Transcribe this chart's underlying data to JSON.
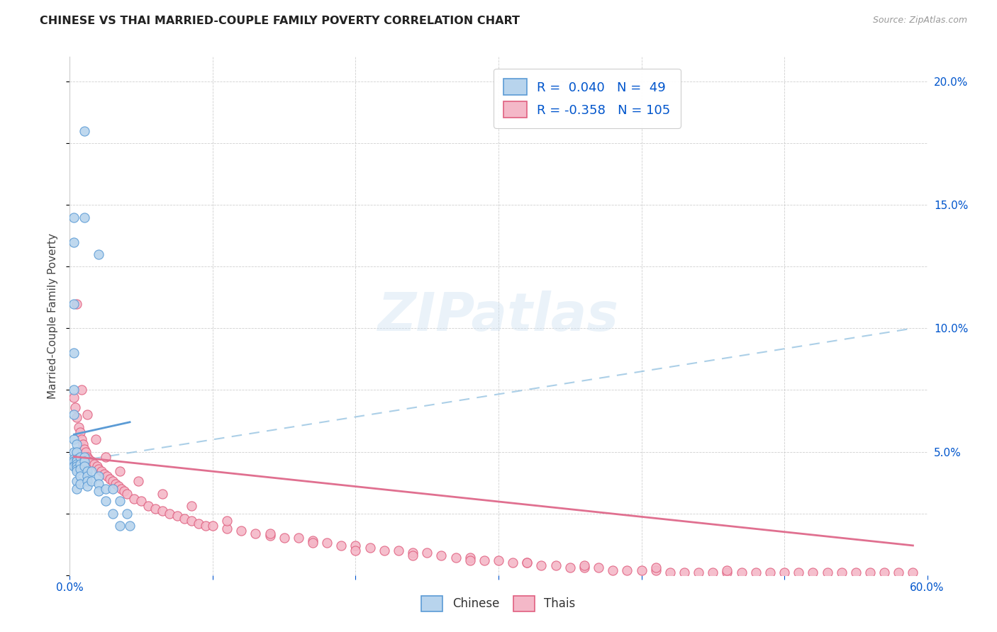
{
  "title": "CHINESE VS THAI MARRIED-COUPLE FAMILY POVERTY CORRELATION CHART",
  "source": "Source: ZipAtlas.com",
  "ylabel": "Married-Couple Family Poverty",
  "xlim": [
    0.0,
    0.6
  ],
  "ylim": [
    0.0,
    0.21
  ],
  "chinese_R": 0.04,
  "chinese_N": 49,
  "thai_R": -0.358,
  "thai_N": 105,
  "color_chinese_fill": "#b8d4ed",
  "color_chinese_edge": "#5b9bd5",
  "color_thai_fill": "#f4b8c8",
  "color_thai_edge": "#e06080",
  "color_chinese_trendline": "#5b9bd5",
  "color_thai_trendline": "#e07090",
  "color_dashed": "#90c0e0",
  "watermark": "ZIPatlas",
  "background_color": "#ffffff",
  "grid_color": "#bbbbbb",
  "title_color": "#222222",
  "axis_label_color": "#0055cc",
  "chinese_scatter_x": [
    0.01,
    0.01,
    0.02,
    0.003,
    0.003,
    0.003,
    0.003,
    0.003,
    0.003,
    0.003,
    0.003,
    0.003,
    0.003,
    0.003,
    0.005,
    0.005,
    0.005,
    0.005,
    0.005,
    0.005,
    0.005,
    0.005,
    0.005,
    0.005,
    0.007,
    0.007,
    0.007,
    0.007,
    0.007,
    0.01,
    0.01,
    0.01,
    0.012,
    0.012,
    0.012,
    0.012,
    0.015,
    0.015,
    0.02,
    0.02,
    0.02,
    0.025,
    0.025,
    0.03,
    0.03,
    0.035,
    0.035,
    0.04,
    0.042
  ],
  "chinese_scatter_y": [
    0.18,
    0.145,
    0.13,
    0.145,
    0.135,
    0.11,
    0.09,
    0.075,
    0.065,
    0.055,
    0.05,
    0.047,
    0.046,
    0.044,
    0.053,
    0.05,
    0.047,
    0.046,
    0.045,
    0.044,
    0.043,
    0.042,
    0.038,
    0.035,
    0.048,
    0.045,
    0.043,
    0.04,
    0.037,
    0.048,
    0.046,
    0.044,
    0.042,
    0.04,
    0.038,
    0.036,
    0.042,
    0.038,
    0.04,
    0.037,
    0.034,
    0.035,
    0.03,
    0.035,
    0.025,
    0.03,
    0.02,
    0.025,
    0.02
  ],
  "thai_scatter_x": [
    0.003,
    0.004,
    0.005,
    0.006,
    0.007,
    0.008,
    0.009,
    0.01,
    0.011,
    0.012,
    0.013,
    0.015,
    0.017,
    0.019,
    0.02,
    0.022,
    0.024,
    0.026,
    0.028,
    0.03,
    0.032,
    0.034,
    0.036,
    0.038,
    0.04,
    0.045,
    0.05,
    0.055,
    0.06,
    0.065,
    0.07,
    0.075,
    0.08,
    0.085,
    0.09,
    0.095,
    0.1,
    0.11,
    0.12,
    0.13,
    0.14,
    0.15,
    0.16,
    0.17,
    0.18,
    0.19,
    0.2,
    0.21,
    0.22,
    0.23,
    0.24,
    0.25,
    0.26,
    0.27,
    0.28,
    0.29,
    0.3,
    0.31,
    0.32,
    0.33,
    0.34,
    0.35,
    0.36,
    0.37,
    0.38,
    0.39,
    0.4,
    0.41,
    0.42,
    0.43,
    0.44,
    0.45,
    0.46,
    0.47,
    0.48,
    0.49,
    0.5,
    0.51,
    0.52,
    0.53,
    0.54,
    0.55,
    0.56,
    0.57,
    0.58,
    0.59,
    0.005,
    0.008,
    0.012,
    0.018,
    0.025,
    0.035,
    0.048,
    0.065,
    0.085,
    0.11,
    0.14,
    0.17,
    0.2,
    0.24,
    0.28,
    0.32,
    0.36,
    0.41,
    0.46
  ],
  "thai_scatter_y": [
    0.072,
    0.068,
    0.064,
    0.06,
    0.058,
    0.055,
    0.053,
    0.051,
    0.05,
    0.048,
    0.047,
    0.046,
    0.045,
    0.044,
    0.043,
    0.042,
    0.041,
    0.04,
    0.039,
    0.038,
    0.037,
    0.036,
    0.035,
    0.034,
    0.033,
    0.031,
    0.03,
    0.028,
    0.027,
    0.026,
    0.025,
    0.024,
    0.023,
    0.022,
    0.021,
    0.02,
    0.02,
    0.019,
    0.018,
    0.017,
    0.016,
    0.015,
    0.015,
    0.014,
    0.013,
    0.012,
    0.012,
    0.011,
    0.01,
    0.01,
    0.009,
    0.009,
    0.008,
    0.007,
    0.007,
    0.006,
    0.006,
    0.005,
    0.005,
    0.004,
    0.004,
    0.003,
    0.003,
    0.003,
    0.002,
    0.002,
    0.002,
    0.002,
    0.001,
    0.001,
    0.001,
    0.001,
    0.001,
    0.001,
    0.001,
    0.001,
    0.001,
    0.001,
    0.001,
    0.001,
    0.001,
    0.001,
    0.001,
    0.001,
    0.001,
    0.001,
    0.11,
    0.075,
    0.065,
    0.055,
    0.048,
    0.042,
    0.038,
    0.033,
    0.028,
    0.022,
    0.017,
    0.013,
    0.01,
    0.008,
    0.006,
    0.005,
    0.004,
    0.003,
    0.002
  ],
  "chinese_trendline_x": [
    0.003,
    0.042
  ],
  "chinese_trendline_y": [
    0.057,
    0.062
  ],
  "thai_trendline_x": [
    0.003,
    0.59
  ],
  "thai_trendline_y": [
    0.048,
    0.012
  ],
  "dashed_trendline_x": [
    0.003,
    0.59
  ],
  "dashed_trendline_y": [
    0.046,
    0.1
  ]
}
